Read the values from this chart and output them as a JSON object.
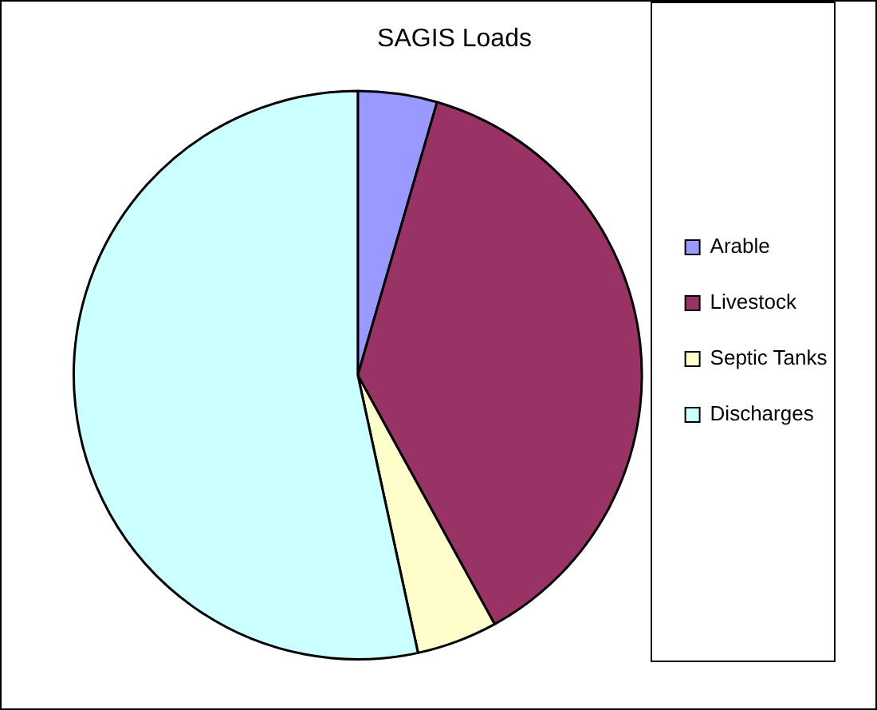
{
  "chart_data": {
    "type": "pie",
    "title": "SAGIS Loads",
    "categories": [
      "Arable",
      "Livestock",
      "Septic Tanks",
      "Discharges"
    ],
    "values": [
      4.5,
      37.5,
      4.6,
      53.4
    ],
    "colors": [
      "#9999ff",
      "#993366",
      "#ffffcc",
      "#ccffff"
    ],
    "legend": "right"
  }
}
